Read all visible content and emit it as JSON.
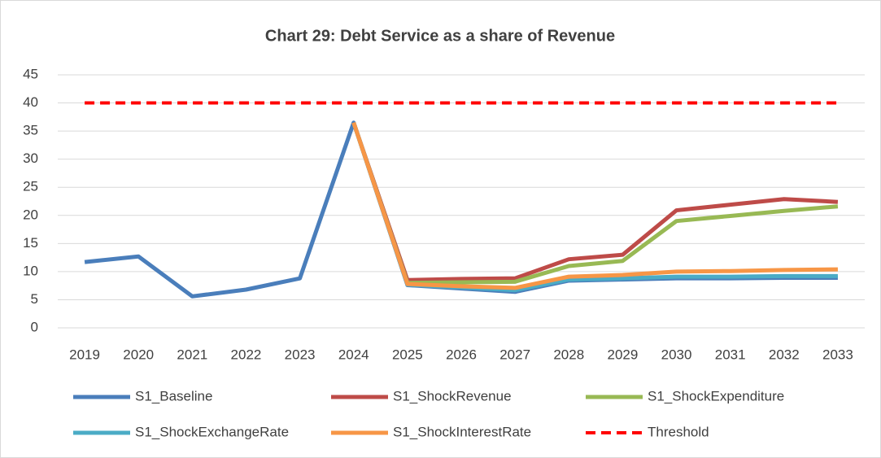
{
  "chart_data": {
    "type": "line",
    "title": "Chart 29: Debt Service as a share of Revenue",
    "categories": [
      "2019",
      "2020",
      "2021",
      "2022",
      "2023",
      "2024",
      "2025",
      "2026",
      "2027",
      "2028",
      "2029",
      "2030",
      "2031",
      "2032",
      "2033"
    ],
    "series": [
      {
        "name": "S1_Baseline",
        "color": "#4a7ebb",
        "values": [
          11.7,
          12.7,
          5.6,
          6.8,
          8.8,
          36.5,
          7.6,
          7.0,
          6.4,
          8.4,
          8.6,
          8.8,
          8.8,
          8.9,
          8.9
        ]
      },
      {
        "name": "S1_ShockRevenue",
        "color": "#be4b48",
        "values": [
          null,
          null,
          null,
          null,
          null,
          36.5,
          8.5,
          8.7,
          8.8,
          12.2,
          13.0,
          20.9,
          21.9,
          22.9,
          22.4
        ]
      },
      {
        "name": "S1_ShockExpenditure",
        "color": "#98b954",
        "values": [
          null,
          null,
          null,
          null,
          null,
          36.5,
          8.0,
          8.1,
          8.2,
          11.0,
          11.9,
          19.0,
          19.9,
          20.8,
          21.6
        ]
      },
      {
        "name": "S1_ShockExchangeRate",
        "color": "#4bacc6",
        "values": [
          null,
          null,
          null,
          null,
          null,
          36.5,
          7.7,
          7.2,
          6.7,
          8.6,
          8.8,
          9.1,
          9.1,
          9.2,
          9.2
        ]
      },
      {
        "name": "S1_ShockInterestRate",
        "color": "#f79646",
        "values": [
          null,
          null,
          null,
          null,
          null,
          36.5,
          7.8,
          7.4,
          7.1,
          9.1,
          9.4,
          10.0,
          10.1,
          10.3,
          10.4
        ]
      },
      {
        "name": "Threshold",
        "color": "#ff0000",
        "dashed": true,
        "values": [
          40,
          40,
          40,
          40,
          40,
          40,
          40,
          40,
          40,
          40,
          40,
          40,
          40,
          40,
          40
        ]
      }
    ],
    "ylim": [
      0,
      45
    ],
    "yticks": [
      0,
      5,
      10,
      15,
      20,
      25,
      30,
      35,
      40,
      45
    ],
    "grid": true,
    "legend": "bottom"
  }
}
